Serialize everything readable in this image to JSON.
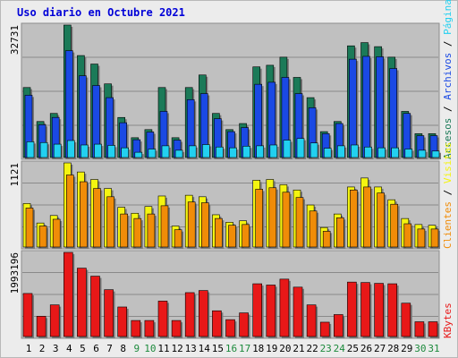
{
  "title": "Uso diario en Octubre 2021",
  "colors": {
    "accesos": "#1b7a58",
    "archivos": "#1a49e4",
    "paginas": "#22d0f0",
    "visitas": "#f4f410",
    "clientes": "#f08c08",
    "kbytes": "#e81818",
    "panel_bg": "#c0c0c0",
    "gridline": "#8a8a8a",
    "weekday_label": "#000000",
    "weekend_label": "#1c8a3c"
  },
  "chart_data": [
    {
      "type": "bar",
      "title": "Uso diario en Octubre 2021",
      "panel": "top",
      "ymax_label": "32731",
      "ylim": [
        0,
        32731
      ],
      "categories": [
        "1",
        "2",
        "3",
        "4",
        "5",
        "6",
        "7",
        "8",
        "9",
        "10",
        "11",
        "12",
        "13",
        "14",
        "15",
        "16",
        "17",
        "18",
        "19",
        "20",
        "21",
        "22",
        "23",
        "24",
        "25",
        "26",
        "27",
        "28",
        "29",
        "30",
        "31"
      ],
      "weekend_days": [
        9,
        10,
        16,
        17,
        23,
        24,
        30,
        31
      ],
      "legend": [
        {
          "name": "Accesos",
          "color": "#1b7a58",
          "text": "Accesos"
        },
        {
          "name": "Archivos",
          "color": "#1a49e4",
          "text": "Archivos"
        },
        {
          "name": "Páginas",
          "color": "#22d0f0",
          "text": "Páginas"
        }
      ],
      "legend_separator": " / ",
      "series": [
        {
          "name": "Accesos",
          "values": [
            17300,
            8900,
            10900,
            32731,
            25200,
            23100,
            18200,
            9900,
            4900,
            6900,
            17300,
            4900,
            17300,
            20400,
            10900,
            6900,
            8400,
            22400,
            22800,
            24800,
            19800,
            14800,
            6400,
            8900,
            27600,
            28400,
            27400,
            24800,
            11400,
            5900,
            5900
          ]
        },
        {
          "name": "Archivos",
          "values": [
            15400,
            8100,
            9900,
            26400,
            20200,
            17800,
            14800,
            8600,
            4400,
            6300,
            11400,
            4300,
            14300,
            15800,
            9600,
            6400,
            7400,
            18100,
            18600,
            19800,
            15800,
            12300,
            5900,
            8400,
            24300,
            25000,
            24900,
            22000,
            10900,
            5400,
            5400
          ]
        },
        {
          "name": "Páginas",
          "values": [
            3900,
            3700,
            3300,
            4200,
            3100,
            3300,
            3000,
            2400,
            1300,
            2100,
            2900,
            1800,
            2900,
            3200,
            2600,
            2400,
            2800,
            2900,
            3100,
            4300,
            4700,
            3600,
            2300,
            2900,
            3100,
            2600,
            2400,
            2400,
            2100,
            1800,
            1600
          ]
        }
      ]
    },
    {
      "type": "bar",
      "panel": "middle",
      "ymax_label": "1121",
      "ylim": [
        0,
        1121
      ],
      "legend": [
        {
          "name": "Clientes",
          "color": "#f08c08",
          "text": "Clientes"
        },
        {
          "name": "Visitas",
          "color": "#f4f410",
          "text": "Visitas"
        }
      ],
      "legend_separator": " / ",
      "series": [
        {
          "name": "Visitas",
          "values": [
            580,
            320,
            420,
            1121,
            1000,
            900,
            780,
            530,
            450,
            540,
            680,
            280,
            690,
            670,
            430,
            330,
            350,
            890,
            900,
            830,
            760,
            560,
            260,
            440,
            800,
            920,
            800,
            630,
            380,
            300,
            290
          ]
        },
        {
          "name": "Clientes",
          "values": [
            520,
            280,
            370,
            960,
            870,
            780,
            670,
            440,
            380,
            440,
            550,
            230,
            600,
            590,
            380,
            290,
            300,
            770,
            790,
            730,
            660,
            480,
            210,
            390,
            760,
            800,
            720,
            570,
            310,
            240,
            240
          ]
        }
      ]
    },
    {
      "type": "bar",
      "panel": "bottom",
      "ymax_label": "1993196",
      "ylim": [
        0,
        1993196
      ],
      "legend": [
        {
          "name": "KBytes",
          "color": "#e81818",
          "text": "KBytes"
        }
      ],
      "series": [
        {
          "name": "KBytes",
          "values": [
            1020000,
            480000,
            750000,
            1993196,
            1620000,
            1430000,
            1110000,
            700000,
            380000,
            380000,
            840000,
            380000,
            1040000,
            1090000,
            610000,
            400000,
            560000,
            1250000,
            1220000,
            1360000,
            1170000,
            750000,
            340000,
            520000,
            1290000,
            1280000,
            1260000,
            1250000,
            790000,
            350000,
            350000
          ]
        }
      ]
    }
  ]
}
